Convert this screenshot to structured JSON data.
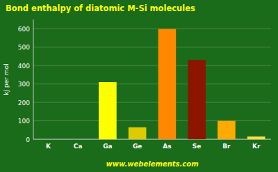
{
  "chart_data": {
    "type": "bar",
    "title": "Bond enthalpy of diatomic M-Si molecules",
    "y_label": "kJ per mol",
    "annotations": [
      "www.webelements.com"
    ],
    "categories": [
      "K",
      "Ca",
      "Ga",
      "Ge",
      "As",
      "Se",
      "Br",
      "Kr"
    ],
    "values": [
      0,
      0,
      310,
      65,
      598,
      430,
      100,
      15
    ],
    "colors": [
      "#9966cc",
      "#aa77dd",
      "#ffff00",
      "#ddcc00",
      "#ff8800",
      "#8b1500",
      "#ffaa00",
      "#ffdd44"
    ],
    "ylim": [
      0,
      650
    ],
    "yticks": [
      0,
      100,
      200,
      300,
      400,
      500,
      600
    ],
    "grid": true
  }
}
